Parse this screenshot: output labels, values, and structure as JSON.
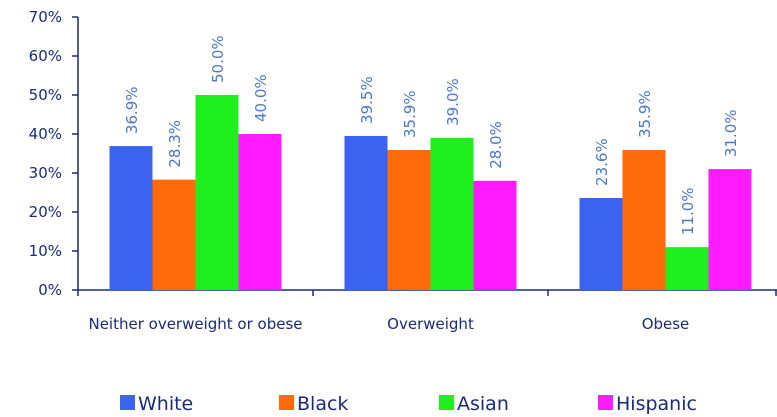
{
  "chart_data": {
    "type": "bar",
    "categories": [
      "Neither overweight or obese",
      "Overweight",
      "Obese"
    ],
    "series": [
      {
        "name": "White",
        "color": "#3a63f0",
        "values": [
          36.9,
          39.5,
          23.6
        ],
        "value_labels": [
          "36.9%",
          "39.5%",
          "23.6%"
        ]
      },
      {
        "name": "Black",
        "color": "#ff6a0a",
        "values": [
          28.3,
          35.9,
          35.9
        ],
        "value_labels": [
          "28.3%",
          "35.9%",
          "35.9%"
        ]
      },
      {
        "name": "Asian",
        "color": "#1ef01e",
        "values": [
          50.0,
          39.0,
          11.0
        ],
        "value_labels": [
          "50.0%",
          "39.0%",
          "11.0%"
        ]
      },
      {
        "name": "Hispanic",
        "color": "#ff1aff",
        "values": [
          40.0,
          28.0,
          31.0
        ],
        "value_labels": [
          "40.0%",
          "28.0%",
          "31.0%"
        ]
      }
    ],
    "ylim": [
      0,
      70
    ],
    "yticks": [
      {
        "value": 0,
        "label": "0%"
      },
      {
        "value": 10,
        "label": "10%"
      },
      {
        "value": 20,
        "label": "20%"
      },
      {
        "value": 30,
        "label": "30%"
      },
      {
        "value": 40,
        "label": "40%"
      },
      {
        "value": 50,
        "label": "50%"
      },
      {
        "value": 60,
        "label": "60%"
      },
      {
        "value": 70,
        "label": "70%"
      }
    ],
    "grid": false,
    "label_color": "#4a78c8"
  }
}
